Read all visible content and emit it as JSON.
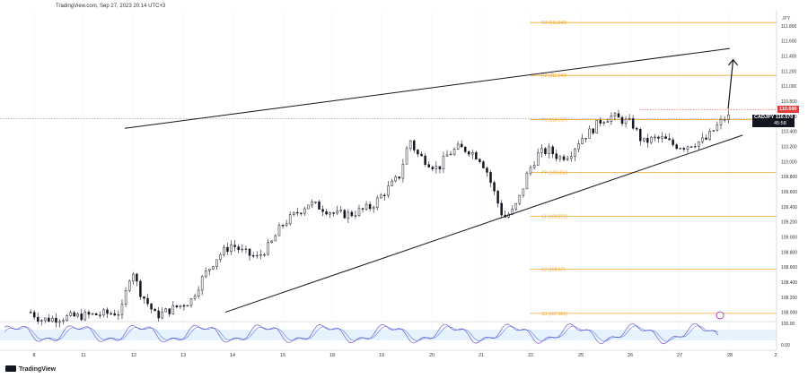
{
  "header": {
    "text": "TradingView.com, Sep 27, 2023 20:14 UTC+3"
  },
  "footer": {
    "logo_text": "TradingView"
  },
  "symbol_axis_label": "JPY",
  "price_tags": {
    "current": {
      "label": "CADJPY",
      "price": "110.570",
      "countdown": "45:58",
      "color": "#131722"
    },
    "high": {
      "price": "110.690",
      "color": "#e53935"
    }
  },
  "chart_data": {
    "type": "candlestick",
    "title": "",
    "xlabel": "",
    "ylabel": "",
    "ylim": [
      107.9,
      112.0
    ],
    "y_ticks": [
      "111.800",
      "111.600",
      "111.400",
      "111.200",
      "111.000",
      "110.800",
      "110.600",
      "110.400",
      "110.200",
      "110.000",
      "109.800",
      "109.600",
      "109.400",
      "109.200",
      "109.000",
      "108.800",
      "108.600",
      "108.400",
      "108.200",
      "108.000"
    ],
    "x_ticks": [
      "8",
      "11",
      "12",
      "13",
      "14",
      "15",
      "18",
      "19",
      "20",
      "21",
      "22",
      "25",
      "26",
      "27",
      "28",
      "2"
    ],
    "pivot_levels": [
      {
        "label": "R3 (111.843)",
        "value": 111.843
      },
      {
        "label": "R2 (111.142)",
        "value": 111.142
      },
      {
        "label": "R1 (110.557)",
        "value": 110.557
      },
      {
        "label": "PP (109.856)",
        "value": 109.856
      },
      {
        "label": "S1 (109.271)",
        "value": 109.271
      },
      {
        "label": "S2 (108.57)",
        "value": 108.57
      },
      {
        "label": "S3 (107.985)",
        "value": 107.985
      }
    ],
    "reference_lines": {
      "high_dotted": 110.69,
      "last_price_dotted": 110.57
    },
    "channel": {
      "upper": {
        "from": [
          10.6,
          110.44
        ],
        "to": [
          28.0,
          111.5
        ]
      },
      "lower": {
        "from": [
          13.5,
          108.0
        ],
        "to": [
          28.4,
          110.35
        ]
      }
    },
    "close_path": [
      [
        7.9,
        108.0
      ],
      [
        8.2,
        107.9
      ],
      [
        10.5,
        108.0
      ],
      [
        10.8,
        108.6
      ],
      [
        11.0,
        108.3
      ],
      [
        11.5,
        107.95
      ],
      [
        12.0,
        108.05
      ],
      [
        12.5,
        108.15
      ],
      [
        12.9,
        108.5
      ],
      [
        13.3,
        108.75
      ],
      [
        13.7,
        108.9
      ],
      [
        14.0,
        108.8
      ],
      [
        14.4,
        108.72
      ],
      [
        14.8,
        108.9
      ],
      [
        15.1,
        109.15
      ],
      [
        15.5,
        109.3
      ],
      [
        15.9,
        109.45
      ],
      [
        16.3,
        109.38
      ],
      [
        16.7,
        109.3
      ],
      [
        17.1,
        109.3
      ],
      [
        17.4,
        109.35
      ],
      [
        17.7,
        109.4
      ],
      [
        18.1,
        109.6
      ],
      [
        18.5,
        109.8
      ],
      [
        18.8,
        110.3
      ],
      [
        19.0,
        110.1
      ],
      [
        19.3,
        110.0
      ],
      [
        19.6,
        109.9
      ],
      [
        19.9,
        110.1
      ],
      [
        20.2,
        110.18
      ],
      [
        20.5,
        110.15
      ],
      [
        20.8,
        110.05
      ],
      [
        21.0,
        109.9
      ],
      [
        21.3,
        109.5
      ],
      [
        21.5,
        109.25
      ],
      [
        21.8,
        109.35
      ],
      [
        22.0,
        109.55
      ],
      [
        22.2,
        109.85
      ],
      [
        22.5,
        110.1
      ],
      [
        22.8,
        110.15
      ],
      [
        23.1,
        110.05
      ],
      [
        23.4,
        110.1
      ],
      [
        23.7,
        110.3
      ],
      [
        24.0,
        110.4
      ],
      [
        24.3,
        110.55
      ],
      [
        24.6,
        110.6
      ],
      [
        24.9,
        110.55
      ],
      [
        25.2,
        110.5
      ],
      [
        25.5,
        110.25
      ],
      [
        25.8,
        110.3
      ],
      [
        26.1,
        110.3
      ],
      [
        26.4,
        110.22
      ],
      [
        26.7,
        110.2
      ],
      [
        27.0,
        110.25
      ],
      [
        27.3,
        110.28
      ],
      [
        27.6,
        110.45
      ],
      [
        27.9,
        110.6
      ],
      [
        28.05,
        110.57
      ]
    ],
    "up_arrow": {
      "from": [
        27.95,
        110.7
      ],
      "to": [
        28.1,
        111.35
      ]
    },
    "rsi": {
      "ylim": [
        0,
        100
      ],
      "y_ticks": [
        "100.00",
        "0.00"
      ],
      "band": [
        30,
        70
      ]
    }
  }
}
